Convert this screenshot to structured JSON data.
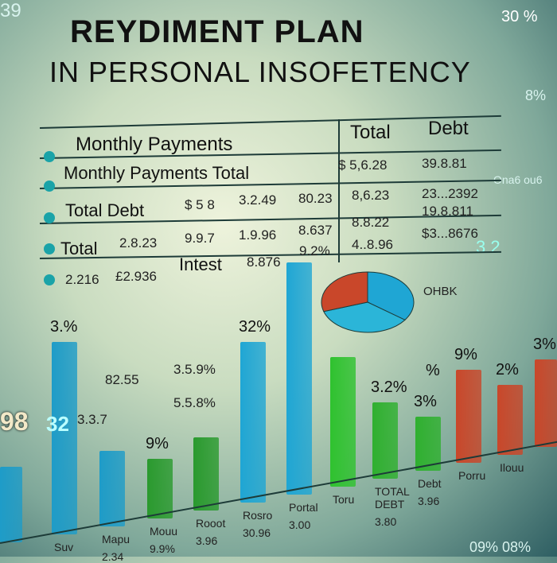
{
  "title_line1": "REYDIMENT PLAN",
  "title_line2": "IN PERSONAL INSOFETENCY",
  "table": {
    "headers": [
      "Monthly Payments",
      "Total",
      "Debt"
    ],
    "rows": [
      {
        "label": "Monthly Payments Total",
        "cells": [
          "$ 5,6.28",
          "39.8.81"
        ]
      },
      {
        "label": "Total Debt",
        "cells": [
          "$ 5 8",
          "3.2.49",
          "80.23",
          "8,6.23",
          "23...2392"
        ]
      },
      {
        "label": "Total",
        "cells": [
          "2.8.23",
          "9.9.7",
          "1.9.96",
          "8.637",
          "8.8.22",
          "19.8.811"
        ]
      },
      {
        "label": "",
        "cells": [
          "2.216",
          "£2.936",
          "Intest",
          "8.876",
          "9.2%",
          "4..8.96",
          "$3...8676"
        ]
      }
    ],
    "extra_row": [
      "9.2%",
      "4..8.96"
    ]
  },
  "side_texts": {
    "top_right": "30 %",
    "top_left": "39",
    "right1": "8%",
    "right2": "Ona6 ou6",
    "mid_right": "3 2",
    "pie_label": "OHBK",
    "left_big": "98",
    "bottom_right": "09% 08%"
  },
  "chart_data": {
    "type": "bar",
    "categories": [
      "",
      "Suv",
      "Mapu",
      "Mouu",
      "Rooot",
      "Rosro",
      "Portal",
      "Toru",
      "TOTAL DEBT",
      "Debt",
      "Porru",
      "Ilouu",
      ""
    ],
    "values": [
      95,
      242,
      95,
      75,
      92,
      202,
      292,
      163,
      96,
      68,
      117,
      88,
      110
    ],
    "colors": [
      "#1e9cc8",
      "#1e9cc8",
      "#1e9cc8",
      "#2a9a2e",
      "#2a9a2e",
      "#1fa6d4",
      "#1fa6d4",
      "#2fc22f",
      "#2fb02f",
      "#2fb02f",
      "#c9472a",
      "#c9472a",
      "#c9472a"
    ],
    "bar_labels": [
      "",
      "3.%",
      "",
      "9%",
      "",
      "32%",
      "",
      "",
      "3.2%",
      "3%",
      "9%",
      "2%",
      "3%"
    ],
    "sub_labels": [
      "",
      "",
      "2.34",
      "9.9%",
      "3.96",
      "30.96",
      "3.00",
      "",
      "3.80",
      "3.96",
      "",
      "",
      ""
    ],
    "annotations": [
      "82.55",
      "3.5.9%",
      "5.5.8%",
      "3.3.7",
      "%",
      "32"
    ],
    "pie": {
      "slices": [
        {
          "value": 35,
          "color": "#1fa6d4"
        },
        {
          "value": 35,
          "color": "#2bb5d8"
        },
        {
          "value": 30,
          "color": "#c9472a"
        }
      ]
    }
  }
}
